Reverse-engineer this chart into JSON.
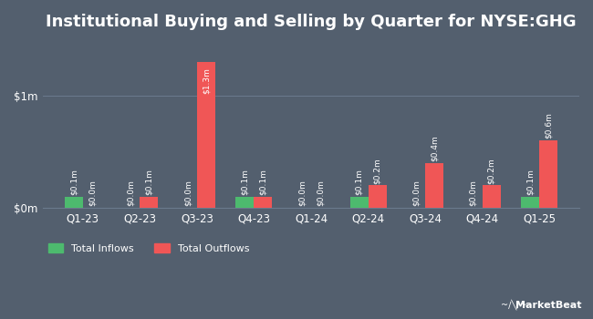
{
  "title": "Institutional Buying and Selling by Quarter for NYSE:GHG",
  "quarters": [
    "Q1-23",
    "Q2-23",
    "Q3-23",
    "Q4-23",
    "Q1-24",
    "Q2-24",
    "Q3-24",
    "Q4-24",
    "Q1-25"
  ],
  "inflows": [
    0.1,
    0.0,
    0.0,
    0.1,
    0.0,
    0.1,
    0.0,
    0.0,
    0.1
  ],
  "outflows": [
    0.0,
    0.1,
    1.3,
    0.1,
    0.0,
    0.2,
    0.4,
    0.2,
    0.6
  ],
  "inflow_labels": [
    "$0.1m",
    "$0.0m",
    "$0.0m",
    "$0.1m",
    "$0.0m",
    "$0.1m",
    "$0.0m",
    "$0.0m",
    "$0.1m"
  ],
  "outflow_labels": [
    "$0.0m",
    "$0.1m",
    "$1.3m",
    "$0.1m",
    "$0.0m",
    "$0.2m",
    "$0.4m",
    "$0.2m",
    "$0.6m"
  ],
  "inflow_color": "#4dba6e",
  "outflow_color": "#f05656",
  "background_color": "#535f6e",
  "plot_bg_color": "#535f6e",
  "text_color": "#ffffff",
  "grid_color": "#6b7a8d",
  "yticks": [
    0,
    1
  ],
  "ytick_labels": [
    "$0m",
    "$1m"
  ],
  "ylim": [
    0,
    1.5
  ],
  "bar_width": 0.32,
  "legend_inflow": "Total Inflows",
  "legend_outflow": "Total Outflows",
  "title_fontsize": 13,
  "label_fontsize": 6.5,
  "tick_fontsize": 8.5,
  "legend_fontsize": 8
}
